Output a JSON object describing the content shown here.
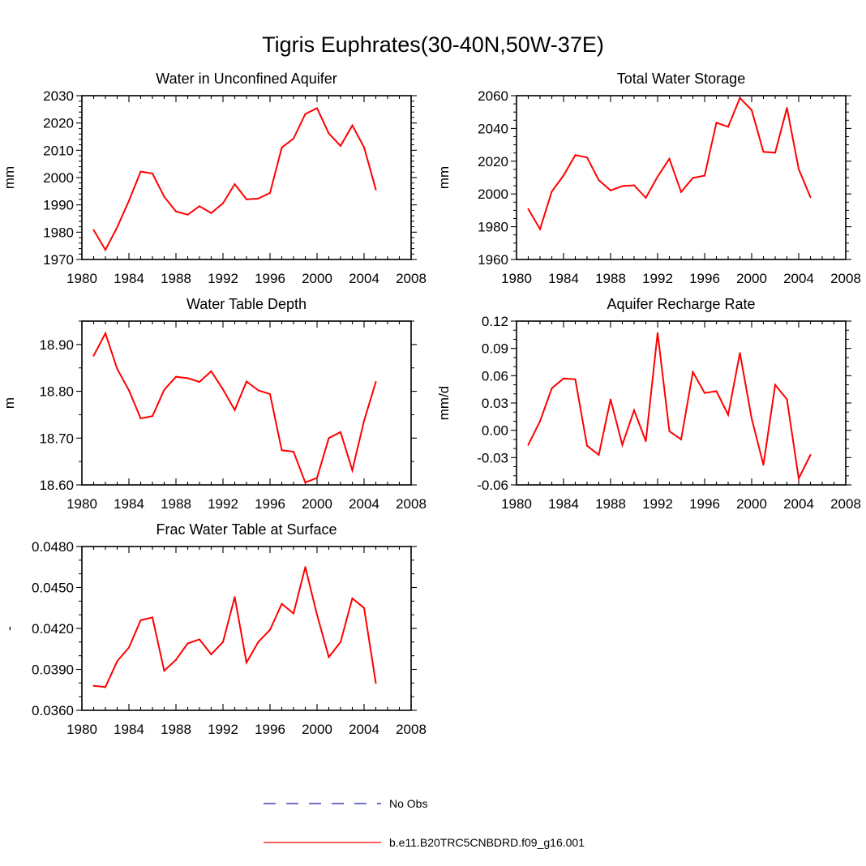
{
  "figure_title": "Tigris Euphrates(30-40N,50W-37E)",
  "legend": [
    {
      "label": "No Obs",
      "color": "#1a1aa6",
      "style": "dashed"
    },
    {
      "label": "b.e11.B20TRC5CNBDRD.f09_g16.001",
      "color": "#ff0000",
      "style": "solid"
    }
  ],
  "chart_data": [
    {
      "type": "line",
      "title": "Water in Unconfined Aquifer",
      "ylabel": "mm",
      "xlim": [
        1980,
        2008
      ],
      "ylim": [
        1970,
        2030
      ],
      "xticks": [
        "1980",
        "1984",
        "1988",
        "1992",
        "1996",
        "2000",
        "2004",
        "2008"
      ],
      "yticks": [
        "1970",
        "1980",
        "1990",
        "2000",
        "2010",
        "2020",
        "2030"
      ],
      "series": [
        {
          "name": "b.e11.B20TRC5CNBDRD.f09_g16.001",
          "color": "#ff0000",
          "x": [
            1981,
            1982,
            1983,
            1984,
            1985,
            1986,
            1987,
            1988,
            1989,
            1990,
            1991,
            1992,
            1993,
            1994,
            1995,
            1996,
            1997,
            1998,
            1999,
            2000,
            2001,
            2002,
            2003,
            2004,
            2005
          ],
          "values": [
            1980.8,
            1973.5,
            1981.8,
            1991.5,
            2002.2,
            2001.5,
            1993.0,
            1987.6,
            1986.4,
            1989.5,
            1987.0,
            1990.6,
            1997.6,
            1992.0,
            1992.3,
            1994.4,
            2011.0,
            2014.3,
            2023.3,
            2025.4,
            2016.2,
            2011.6,
            2019.1,
            2011.1,
            1995.6
          ]
        }
      ]
    },
    {
      "type": "line",
      "title": "Total Water Storage",
      "ylabel": "mm",
      "xlim": [
        1980,
        2008
      ],
      "ylim": [
        1960,
        2060
      ],
      "xticks": [
        "1980",
        "1984",
        "1988",
        "1992",
        "1996",
        "2000",
        "2004",
        "2008"
      ],
      "yticks": [
        "1960",
        "1980",
        "2000",
        "2020",
        "2040",
        "2060"
      ],
      "series": [
        {
          "name": "b.e11.B20TRC5CNBDRD.f09_g16.001",
          "color": "#ff0000",
          "x": [
            1981,
            1982,
            1983,
            1984,
            1985,
            1986,
            1987,
            1988,
            1989,
            1990,
            1991,
            1992,
            1993,
            1994,
            1995,
            1996,
            1997,
            1998,
            1999,
            2000,
            2001,
            2002,
            2003,
            2004,
            2005
          ],
          "values": [
            1990.8,
            1978.5,
            2001.5,
            2011.3,
            2023.7,
            2022.3,
            2008.4,
            2002.2,
            2004.8,
            2005.3,
            1997.6,
            2010.6,
            2021.5,
            2001.2,
            2009.8,
            2011.2,
            2043.5,
            2041.0,
            2058.6,
            2051.2,
            2025.7,
            2025.2,
            2052.5,
            2015.2,
            1998.0
          ]
        }
      ]
    },
    {
      "type": "line",
      "title": "Water Table Depth",
      "ylabel": "m",
      "xlim": [
        1980,
        2008
      ],
      "ylim": [
        18.6,
        18.95
      ],
      "xticks": [
        "1980",
        "1984",
        "1988",
        "1992",
        "1996",
        "2000",
        "2004",
        "2008"
      ],
      "yticks": [
        "18.60",
        "18.70",
        "18.80",
        "18.90"
      ],
      "series": [
        {
          "name": "b.e11.B20TRC5CNBDRD.f09_g16.001",
          "color": "#ff0000",
          "x": [
            1981,
            1982,
            1983,
            1984,
            1985,
            1986,
            1987,
            1988,
            1989,
            1990,
            1991,
            1992,
            1993,
            1994,
            1995,
            1996,
            1997,
            1998,
            1999,
            2000,
            2001,
            2002,
            2003,
            2004,
            2005
          ],
          "values": [
            18.876,
            18.924,
            18.848,
            18.802,
            18.742,
            18.747,
            18.803,
            18.831,
            18.828,
            18.82,
            18.843,
            18.804,
            18.76,
            18.821,
            18.802,
            18.794,
            18.674,
            18.671,
            18.605,
            18.615,
            18.7,
            18.713,
            18.631,
            18.737,
            18.82
          ]
        }
      ]
    },
    {
      "type": "line",
      "title": "Aquifer Recharge Rate",
      "ylabel": "mm/d",
      "xlim": [
        1980,
        2008
      ],
      "ylim": [
        -0.06,
        0.12
      ],
      "xticks": [
        "1980",
        "1984",
        "1988",
        "1992",
        "1996",
        "2000",
        "2004",
        "2008"
      ],
      "yticks": [
        "-0.06",
        "-0.03",
        "0.00",
        "0.03",
        "0.06",
        "0.09",
        "0.12"
      ],
      "series": [
        {
          "name": "b.e11.B20TRC5CNBDRD.f09_g16.001",
          "color": "#ff0000",
          "x": [
            1981,
            1982,
            1983,
            1984,
            1985,
            1986,
            1987,
            1988,
            1989,
            1990,
            1991,
            1992,
            1993,
            1994,
            1995,
            1996,
            1997,
            1998,
            1999,
            2000,
            2001,
            2002,
            2003,
            2004,
            2005
          ],
          "values": [
            -0.016,
            0.01,
            0.046,
            0.057,
            0.056,
            -0.017,
            -0.027,
            0.034,
            -0.016,
            0.022,
            -0.012,
            0.107,
            -0.001,
            -0.01,
            0.064,
            0.041,
            0.043,
            0.017,
            0.085,
            0.013,
            -0.038,
            0.05,
            0.034,
            -0.053,
            -0.027
          ]
        }
      ]
    },
    {
      "type": "line",
      "title": "Frac Water Table at Surface",
      "ylabel": "-",
      "xlim": [
        1980,
        2008
      ],
      "ylim": [
        0.036,
        0.048
      ],
      "xticks": [
        "1980",
        "1984",
        "1988",
        "1992",
        "1996",
        "2000",
        "2004",
        "2008"
      ],
      "yticks": [
        "0.0360",
        "0.0390",
        "0.0420",
        "0.0450",
        "0.0480"
      ],
      "series": [
        {
          "name": "b.e11.B20TRC5CNBDRD.f09_g16.001",
          "color": "#ff0000",
          "x": [
            1981,
            1982,
            1983,
            1984,
            1985,
            1986,
            1987,
            1988,
            1989,
            1990,
            1991,
            1992,
            1993,
            1994,
            1995,
            1996,
            1997,
            1998,
            1999,
            2000,
            2001,
            2002,
            2003,
            2004,
            2005
          ],
          "values": [
            0.0378,
            0.0377,
            0.0396,
            0.0406,
            0.0426,
            0.0428,
            0.0389,
            0.0397,
            0.0409,
            0.0412,
            0.0401,
            0.041,
            0.0443,
            0.0395,
            0.041,
            0.0419,
            0.0438,
            0.0431,
            0.0465,
            0.043,
            0.0399,
            0.041,
            0.0442,
            0.0435,
            0.038
          ]
        }
      ]
    }
  ]
}
